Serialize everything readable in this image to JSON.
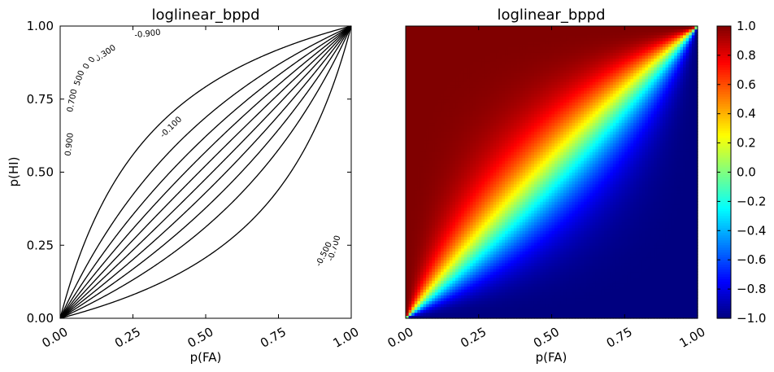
{
  "chart_data": [
    {
      "type": "contour",
      "title": "loglinear_bppd",
      "xlabel": "p(FA)",
      "ylabel": "p(HI)",
      "xlim": [
        0,
        1
      ],
      "ylim": [
        0,
        1
      ],
      "xticks": [
        "0.00",
        "0.25",
        "0.50",
        "0.75",
        "1.00"
      ],
      "yticks": [
        "0.00",
        "0.25",
        "0.50",
        "0.75",
        "1.00"
      ],
      "levels": [
        -0.9,
        -0.7,
        -0.5,
        -0.3,
        -0.1,
        0.1,
        0.3,
        0.5,
        0.7,
        0.9
      ],
      "contour_labels": [
        {
          "text": "-0.900",
          "x": 0.3,
          "y": 0.975
        },
        {
          "text": "-0.300",
          "x": 0.15,
          "y": 0.905
        },
        {
          "text": "-0.100",
          "x": 0.38,
          "y": 0.655
        },
        {
          "text": "0.100",
          "x": 0.09,
          "y": 0.86
        },
        {
          "text": "0.300",
          "x": 0.075,
          "y": 0.835
        },
        {
          "text": "0.500",
          "x": 0.06,
          "y": 0.81
        },
        {
          "text": "0.700",
          "x": 0.04,
          "y": 0.745
        },
        {
          "text": "0.900",
          "x": 0.03,
          "y": 0.595
        },
        {
          "text": "-0.700",
          "x": 0.94,
          "y": 0.24
        },
        {
          "text": "-0.500",
          "x": 0.905,
          "y": 0.22
        }
      ],
      "line_color": "#000000"
    },
    {
      "type": "heatmap",
      "title": "loglinear_bppd",
      "xlabel": "p(FA)",
      "ylabel": "",
      "xlim": [
        0,
        1
      ],
      "ylim": [
        0,
        1
      ],
      "xticks": [
        "0.00",
        "0.25",
        "0.50",
        "0.75",
        "1.00"
      ],
      "colormap": "jet",
      "grid_resolution": 100,
      "value_range": [
        -1.0,
        1.0
      ],
      "colorbar_ticks": [
        "1.0",
        "0.8",
        "0.6",
        "0.4",
        "0.2",
        "0.0",
        "−0.2",
        "−0.4",
        "−0.6",
        "−0.8",
        "−1.0"
      ],
      "colorbar_values": [
        1.0,
        0.8,
        0.6,
        0.4,
        0.2,
        0.0,
        -0.2,
        -0.4,
        -0.6,
        -0.8,
        -1.0
      ]
    }
  ]
}
